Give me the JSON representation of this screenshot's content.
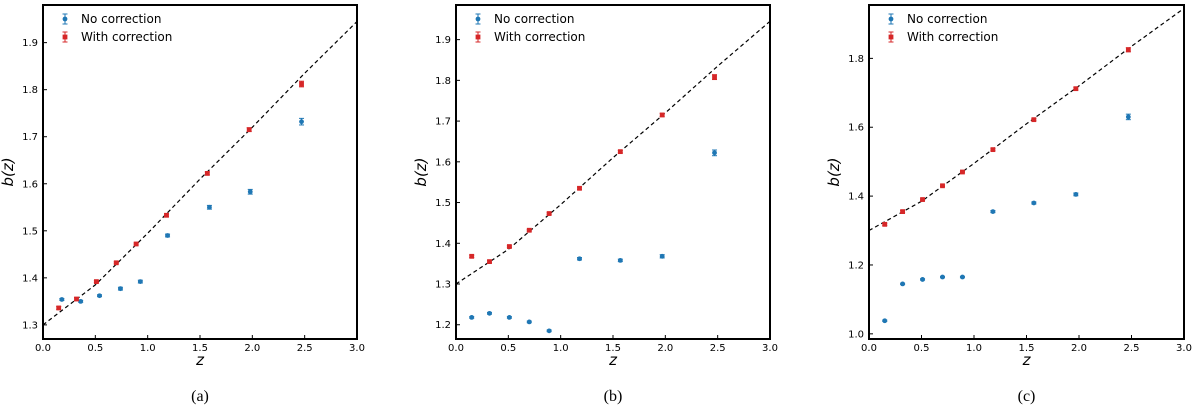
{
  "chart_data": [
    {
      "type": "scatter",
      "panel_label": "(a)",
      "xlabel": "z",
      "ylabel": "b(z)",
      "xlim": [
        0.0,
        3.0
      ],
      "ylim": [
        1.27,
        1.98
      ],
      "xticks": [
        "0.0",
        "0.5",
        "1.0",
        "1.5",
        "2.0",
        "2.5",
        "3.0"
      ],
      "yticks": [
        "1.3",
        "1.4",
        "1.5",
        "1.6",
        "1.7",
        "1.8",
        "1.9"
      ],
      "ytick_values": [
        1.3,
        1.4,
        1.5,
        1.6,
        1.7,
        1.8,
        1.9
      ],
      "legend": {
        "position": "top-left",
        "entries": [
          "No correction",
          "With correction"
        ]
      },
      "series": [
        {
          "name": "No correction",
          "color": "#1f77b4",
          "marker": "circle",
          "x": [
            0.18,
            0.36,
            0.54,
            0.74,
            0.93,
            1.19,
            1.59,
            1.98,
            2.47
          ],
          "y": [
            1.354,
            1.35,
            1.362,
            1.377,
            1.392,
            1.49,
            1.55,
            1.583,
            1.732
          ],
          "yerr": [
            0.002,
            0.002,
            0.002,
            0.003,
            0.003,
            0.003,
            0.004,
            0.005,
            0.007
          ]
        },
        {
          "name": "With correction",
          "color": "#d62728",
          "marker": "square",
          "x": [
            0.15,
            0.32,
            0.51,
            0.7,
            0.89,
            1.18,
            1.57,
            1.97,
            2.47
          ],
          "y": [
            1.336,
            1.355,
            1.392,
            1.432,
            1.472,
            1.533,
            1.622,
            1.715,
            1.812
          ],
          "yerr": [
            0.003,
            0.003,
            0.002,
            0.002,
            0.002,
            0.003,
            0.003,
            0.004,
            0.006
          ]
        }
      ],
      "reference_curve": {
        "style": "dashed",
        "color": "#000000",
        "x": [
          0.0,
          0.5,
          1.0,
          1.5,
          2.0,
          2.5,
          3.0
        ],
        "y": [
          1.3,
          1.385,
          1.495,
          1.61,
          1.72,
          1.835,
          1.945
        ]
      }
    },
    {
      "type": "scatter",
      "panel_label": "(b)",
      "xlabel": "z",
      "ylabel": "b(z)",
      "xlim": [
        0.0,
        3.0
      ],
      "ylim": [
        1.165,
        1.985
      ],
      "xticks": [
        "0.0",
        "0.5",
        "1.0",
        "1.5",
        "2.0",
        "2.5",
        "3.0"
      ],
      "yticks": [
        "1.2",
        "1.3",
        "1.4",
        "1.5",
        "1.6",
        "1.7",
        "1.8",
        "1.9"
      ],
      "ytick_values": [
        1.2,
        1.3,
        1.4,
        1.5,
        1.6,
        1.7,
        1.8,
        1.9
      ],
      "legend": {
        "position": "top-left",
        "entries": [
          "No correction",
          "With correction"
        ]
      },
      "series": [
        {
          "name": "No correction",
          "color": "#1f77b4",
          "marker": "circle",
          "x": [
            0.15,
            0.32,
            0.51,
            0.7,
            0.89,
            1.18,
            1.57,
            1.97,
            2.47
          ],
          "y": [
            1.218,
            1.228,
            1.218,
            1.207,
            1.185,
            1.362,
            1.358,
            1.368,
            1.622
          ],
          "yerr": [
            0.002,
            0.002,
            0.002,
            0.002,
            0.002,
            0.003,
            0.003,
            0.004,
            0.007
          ]
        },
        {
          "name": "With correction",
          "color": "#d62728",
          "marker": "square",
          "x": [
            0.15,
            0.32,
            0.51,
            0.7,
            0.89,
            1.18,
            1.57,
            1.97,
            2.47
          ],
          "y": [
            1.368,
            1.355,
            1.392,
            1.432,
            1.473,
            1.535,
            1.625,
            1.715,
            1.808
          ],
          "yerr": [
            0.003,
            0.003,
            0.002,
            0.002,
            0.002,
            0.003,
            0.003,
            0.004,
            0.006
          ]
        }
      ],
      "reference_curve": {
        "style": "dashed",
        "color": "#000000",
        "x": [
          0.0,
          0.5,
          1.0,
          1.5,
          2.0,
          2.5,
          3.0
        ],
        "y": [
          1.3,
          1.385,
          1.495,
          1.61,
          1.72,
          1.835,
          1.945
        ]
      }
    },
    {
      "type": "scatter",
      "panel_label": "(c)",
      "xlabel": "z",
      "ylabel": "b(z)",
      "xlim": [
        0.0,
        3.0
      ],
      "ylim": [
        0.985,
        1.955
      ],
      "xticks": [
        "0.0",
        "0.5",
        "1.0",
        "1.5",
        "2.0",
        "2.5",
        "3.0"
      ],
      "yticks": [
        "1.0",
        "1.2",
        "1.4",
        "1.6",
        "1.8"
      ],
      "ytick_values": [
        1.0,
        1.2,
        1.4,
        1.6,
        1.8
      ],
      "legend": {
        "position": "top-left",
        "entries": [
          "No correction",
          "With correction"
        ]
      },
      "series": [
        {
          "name": "No correction",
          "color": "#1f77b4",
          "marker": "circle",
          "x": [
            0.15,
            0.32,
            0.51,
            0.7,
            0.89,
            1.18,
            1.57,
            1.97,
            2.47
          ],
          "y": [
            1.038,
            1.145,
            1.158,
            1.165,
            1.165,
            1.355,
            1.38,
            1.405,
            1.63
          ],
          "yerr": [
            0.002,
            0.002,
            0.002,
            0.002,
            0.002,
            0.003,
            0.003,
            0.004,
            0.008
          ]
        },
        {
          "name": "With correction",
          "color": "#d62728",
          "marker": "square",
          "x": [
            0.15,
            0.32,
            0.51,
            0.7,
            0.89,
            1.18,
            1.57,
            1.97,
            2.47
          ],
          "y": [
            1.318,
            1.355,
            1.39,
            1.43,
            1.47,
            1.535,
            1.622,
            1.712,
            1.825
          ],
          "yerr": [
            0.003,
            0.003,
            0.002,
            0.002,
            0.002,
            0.003,
            0.003,
            0.004,
            0.006
          ]
        }
      ],
      "reference_curve": {
        "style": "dashed",
        "color": "#000000",
        "x": [
          0.0,
          0.5,
          1.0,
          1.5,
          2.0,
          2.5,
          3.0
        ],
        "y": [
          1.3,
          1.385,
          1.495,
          1.61,
          1.72,
          1.835,
          1.945
        ]
      }
    }
  ]
}
